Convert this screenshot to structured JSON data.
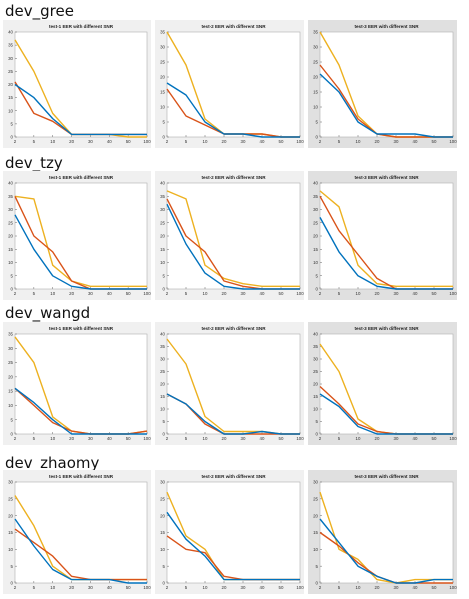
{
  "sections": [
    {
      "title": "dev_gree",
      "charts": [
        {
          "title": "test-1 EER with different SNR",
          "ymax": 40,
          "yticks": [
            0,
            5,
            10,
            15,
            20,
            25,
            30,
            35,
            40
          ],
          "series": [
            {
              "color": "#edb120",
              "values": [
                37,
                25,
                9,
                1,
                1,
                1,
                0,
                0
              ]
            },
            {
              "color": "#d95319",
              "values": [
                21,
                9,
                6,
                1,
                1,
                1,
                1,
                1
              ]
            },
            {
              "color": "#0072bd",
              "values": [
                20,
                15,
                7,
                1,
                1,
                1,
                1,
                1
              ]
            }
          ]
        },
        {
          "title": "test-2 EER with different SNR",
          "ymax": 35,
          "yticks": [
            0,
            5,
            10,
            15,
            20,
            25,
            30,
            35
          ],
          "series": [
            {
              "color": "#edb120",
              "values": [
                35,
                24,
                6,
                1,
                1,
                1,
                0,
                0
              ]
            },
            {
              "color": "#d95319",
              "values": [
                16,
                7,
                4,
                1,
                1,
                1,
                0,
                0
              ]
            },
            {
              "color": "#0072bd",
              "values": [
                18,
                14,
                5,
                1,
                1,
                0,
                0,
                0
              ]
            }
          ]
        },
        {
          "title": "test-3 EER with different SNR",
          "ymax": 35,
          "yticks": [
            0,
            5,
            10,
            15,
            20,
            25,
            30,
            35
          ],
          "series": [
            {
              "color": "#edb120",
              "values": [
                35,
                24,
                7,
                1,
                0,
                0,
                0,
                0
              ]
            },
            {
              "color": "#d95319",
              "values": [
                24,
                16,
                6,
                1,
                0,
                0,
                0,
                0
              ]
            },
            {
              "color": "#0072bd",
              "values": [
                21,
                15,
                5,
                1,
                1,
                1,
                0,
                0
              ]
            }
          ]
        }
      ]
    },
    {
      "title": "dev_tzy",
      "charts": [
        {
          "title": "test-1 EER with different SNR",
          "ymax": 40,
          "yticks": [
            0,
            5,
            10,
            15,
            20,
            25,
            30,
            35,
            40
          ],
          "series": [
            {
              "color": "#edb120",
              "values": [
                35,
                34,
                9,
                3,
                1,
                1,
                1,
                1
              ]
            },
            {
              "color": "#d95319",
              "values": [
                35,
                20,
                14,
                3,
                0,
                0,
                0,
                0
              ]
            },
            {
              "color": "#0072bd",
              "values": [
                28,
                15,
                5,
                1,
                0,
                0,
                0,
                0
              ]
            }
          ]
        },
        {
          "title": "test-2 EER with different SNR",
          "ymax": 40,
          "yticks": [
            0,
            5,
            10,
            15,
            20,
            25,
            30,
            35,
            40
          ],
          "series": [
            {
              "color": "#edb120",
              "values": [
                37,
                34,
                9,
                4,
                2,
                1,
                1,
                1
              ]
            },
            {
              "color": "#d95319",
              "values": [
                34,
                20,
                14,
                3,
                1,
                0,
                0,
                0
              ]
            },
            {
              "color": "#0072bd",
              "values": [
                32,
                17,
                6,
                1,
                0,
                0,
                0,
                0
              ]
            }
          ]
        },
        {
          "title": "test-3 EER with different SNR",
          "ymax": 40,
          "yticks": [
            0,
            5,
            10,
            15,
            20,
            25,
            30,
            35,
            40
          ],
          "series": [
            {
              "color": "#edb120",
              "values": [
                37,
                31,
                9,
                2,
                1,
                1,
                1,
                1
              ]
            },
            {
              "color": "#d95319",
              "values": [
                35,
                22,
                13,
                4,
                0,
                0,
                0,
                0
              ]
            },
            {
              "color": "#0072bd",
              "values": [
                27,
                14,
                5,
                1,
                0,
                0,
                0,
                0
              ]
            }
          ]
        }
      ]
    },
    {
      "title": "dev_wangd",
      "charts": [
        {
          "title": "test-1 EER with different SNR",
          "ymax": 35,
          "yticks": [
            0,
            5,
            10,
            15,
            20,
            25,
            30,
            35
          ],
          "series": [
            {
              "color": "#edb120",
              "values": [
                34,
                25,
                6,
                1,
                0,
                0,
                0,
                1
              ]
            },
            {
              "color": "#d95319",
              "values": [
                16,
                10,
                4,
                1,
                0,
                0,
                0,
                1
              ]
            },
            {
              "color": "#0072bd",
              "values": [
                16,
                11,
                5,
                0,
                0,
                0,
                0,
                0
              ]
            }
          ]
        },
        {
          "title": "test-2 EER with different SNR",
          "ymax": 40,
          "yticks": [
            0,
            5,
            10,
            15,
            20,
            25,
            30,
            35,
            40
          ],
          "series": [
            {
              "color": "#edb120",
              "values": [
                38,
                28,
                7,
                1,
                1,
                1,
                0,
                0
              ]
            },
            {
              "color": "#d95319",
              "values": [
                16,
                12,
                4,
                0,
                0,
                0,
                0,
                0
              ]
            },
            {
              "color": "#0072bd",
              "values": [
                16,
                12,
                5,
                0,
                0,
                1,
                0,
                0
              ]
            }
          ]
        },
        {
          "title": "test-3 EER with different SNR",
          "ymax": 40,
          "yticks": [
            0,
            5,
            10,
            15,
            20,
            25,
            30,
            35,
            40
          ],
          "series": [
            {
              "color": "#edb120",
              "values": [
                36,
                25,
                6,
                1,
                0,
                0,
                0,
                0
              ]
            },
            {
              "color": "#d95319",
              "values": [
                19,
                12,
                4,
                1,
                0,
                0,
                0,
                0
              ]
            },
            {
              "color": "#0072bd",
              "values": [
                16,
                11,
                3,
                0,
                0,
                0,
                0,
                0
              ]
            }
          ]
        }
      ]
    },
    {
      "title": "dev_zhaomy",
      "charts": [
        {
          "title": "test-1 EER with different SNR",
          "ymax": 30,
          "yticks": [
            0,
            5,
            10,
            15,
            20,
            25,
            30
          ],
          "series": [
            {
              "color": "#edb120",
              "values": [
                26,
                17,
                5,
                1,
                1,
                1,
                1,
                1
              ]
            },
            {
              "color": "#d95319",
              "values": [
                16,
                12,
                8,
                2,
                1,
                1,
                1,
                1
              ]
            },
            {
              "color": "#0072bd",
              "values": [
                19,
                11,
                4,
                1,
                1,
                1,
                0,
                0
              ]
            }
          ]
        },
        {
          "title": "test-2 EER with different SNR",
          "ymax": 30,
          "yticks": [
            0,
            5,
            10,
            15,
            20,
            25,
            30
          ],
          "series": [
            {
              "color": "#edb120",
              "values": [
                27,
                14,
                10,
                1,
                1,
                1,
                1,
                1
              ]
            },
            {
              "color": "#d95319",
              "values": [
                14,
                10,
                9,
                2,
                1,
                1,
                1,
                1
              ]
            },
            {
              "color": "#0072bd",
              "values": [
                21,
                13,
                8,
                1,
                1,
                1,
                1,
                1
              ]
            }
          ]
        },
        {
          "title": "test-3 EER with different SNR",
          "ymax": 30,
          "yticks": [
            0,
            5,
            10,
            15,
            20,
            25,
            30
          ],
          "series": [
            {
              "color": "#edb120",
              "values": [
                27,
                10,
                7,
                1,
                0,
                1,
                1,
                1
              ]
            },
            {
              "color": "#d95319",
              "values": [
                15,
                11,
                6,
                2,
                0,
                0,
                0,
                0
              ]
            },
            {
              "color": "#0072bd",
              "values": [
                19,
                12,
                5,
                2,
                0,
                0,
                1,
                1
              ]
            }
          ]
        }
      ]
    }
  ],
  "chart_data": {
    "type": "line",
    "x": [
      "2",
      "5",
      "10",
      "20",
      "30",
      "40",
      "50",
      "100"
    ],
    "note_series_colors": [
      "#edb120",
      "#d95319",
      "#0072bd"
    ]
  }
}
